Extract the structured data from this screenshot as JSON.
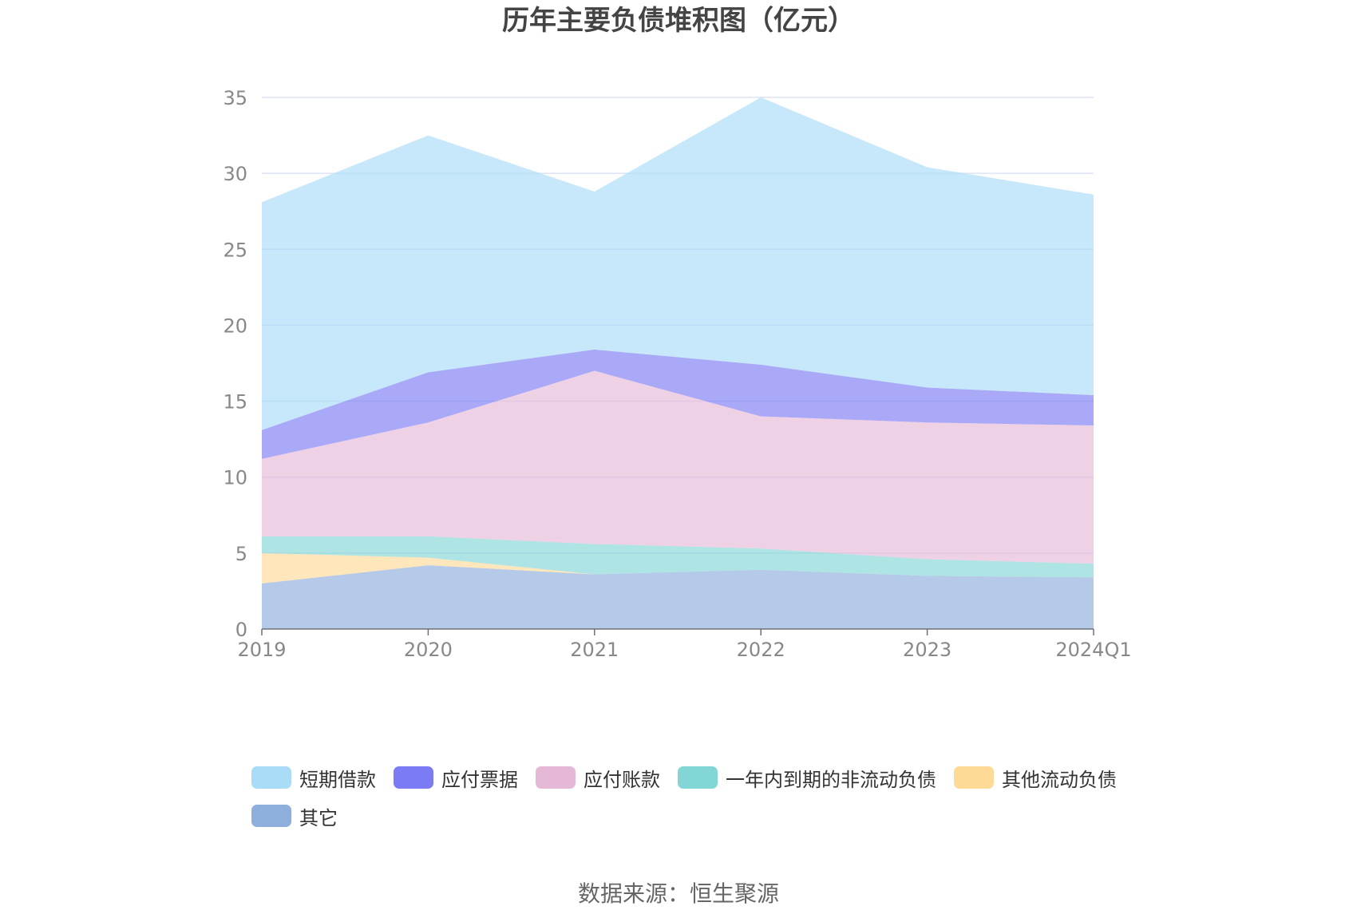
{
  "chart_data": {
    "type": "area",
    "stacked": true,
    "title": "历年主要负债堆积图（亿元）",
    "categories": [
      "2019",
      "2020",
      "2021",
      "2022",
      "2023",
      "2024Q1"
    ],
    "ylim": [
      0,
      35
    ],
    "yticks": [
      0,
      5,
      10,
      15,
      20,
      25,
      30,
      35
    ],
    "grid": true,
    "legend_position": "bottom",
    "series": [
      {
        "name": "其它",
        "color": "#8eaedc",
        "values": [
          3.0,
          4.2,
          3.6,
          3.9,
          3.5,
          3.4
        ]
      },
      {
        "name": "其他流动负债",
        "color": "#ffd996",
        "values": [
          2.0,
          0.5,
          0.0,
          0.0,
          0.0,
          0.0
        ]
      },
      {
        "name": "一年内到期的非流动负债",
        "color": "#82d6d6",
        "values": [
          1.1,
          1.4,
          2.0,
          1.4,
          1.1,
          0.9
        ]
      },
      {
        "name": "应付账款",
        "color": "#e6b8d8",
        "values": [
          5.1,
          7.5,
          11.4,
          8.7,
          9.0,
          9.1
        ]
      },
      {
        "name": "应付票据",
        "color": "#7b7bf5",
        "values": [
          1.9,
          3.3,
          1.4,
          3.4,
          2.3,
          2.0
        ]
      },
      {
        "name": "短期借款",
        "color": "#a8dcf7",
        "values": [
          15.0,
          15.6,
          10.4,
          17.6,
          14.5,
          13.2
        ]
      }
    ]
  },
  "legend": [
    {
      "name": "短期借款",
      "color": "#a8dcf7"
    },
    {
      "name": "应付票据",
      "color": "#7b7bf5"
    },
    {
      "name": "应付账款",
      "color": "#e6b8d8"
    },
    {
      "name": "一年内到期的非流动负债",
      "color": "#82d6d6"
    },
    {
      "name": "其他流动负债",
      "color": "#ffd996"
    },
    {
      "name": "其它",
      "color": "#8eaedc"
    }
  ],
  "source": "数据来源：恒生聚源"
}
